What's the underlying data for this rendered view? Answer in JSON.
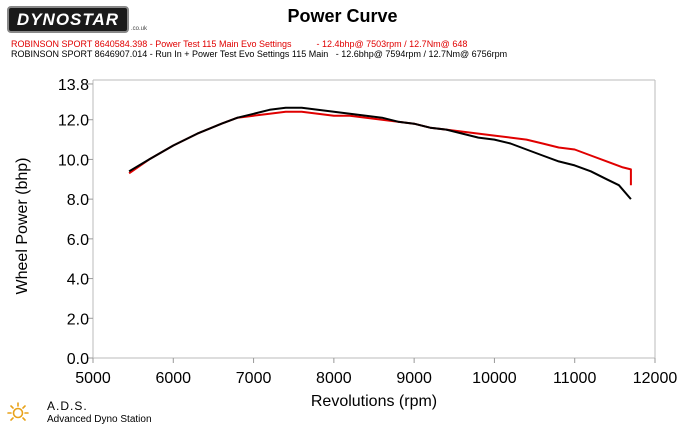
{
  "header": {
    "logo_text": "DYNOSTAR",
    "logo_sub": ".co.uk",
    "title": "Power Curve"
  },
  "legend": {
    "run1": "ROBINSON SPORT 8640584.398 - Power Test 115 Main Evo Settings          - 12.4bhp@ 7503rpm / 12.7Nm@ 648",
    "run2": "ROBINSON SPORT 8646907.014 - Run In + Power Test Evo Settings 115 Main   - 12.6bhp@ 7594rpm / 12.7Nm@ 6756rpm"
  },
  "footer": {
    "ads_title": "A.D.S.",
    "ads_subtitle": "Advanced Dyno Station"
  },
  "chart_data": {
    "type": "line",
    "xlabel": "Revolutions (rpm)",
    "ylabel": "Wheel Power (bhp)",
    "xlim": [
      5000,
      12000
    ],
    "ylim": [
      0,
      14
    ],
    "xticks": [
      5000,
      6000,
      7000,
      8000,
      9000,
      10000,
      11000,
      12000
    ],
    "yticks": [
      0.0,
      2.0,
      4.0,
      6.0,
      8.0,
      10.0,
      12.0,
      13.8
    ],
    "ytick_labels": [
      "0.0",
      "2.0",
      "4.0",
      "6.0",
      "8.0",
      "10.0",
      "12.0",
      "13.8"
    ],
    "grid": false,
    "series": [
      {
        "color": "#e00000",
        "x": [
          5450,
          5700,
          6000,
          6300,
          6600,
          6800,
          7000,
          7200,
          7400,
          7500,
          7600,
          7800,
          8000,
          8200,
          8400,
          8600,
          8800,
          9000,
          9200,
          9400,
          9600,
          9800,
          10000,
          10200,
          10400,
          10600,
          10800,
          11000,
          11200,
          11400,
          11600,
          11700,
          11700
        ],
        "y": [
          9.3,
          10.0,
          10.7,
          11.3,
          11.8,
          12.1,
          12.2,
          12.3,
          12.4,
          12.4,
          12.4,
          12.3,
          12.2,
          12.2,
          12.1,
          12.0,
          11.9,
          11.8,
          11.6,
          11.5,
          11.4,
          11.3,
          11.2,
          11.1,
          11.0,
          10.8,
          10.6,
          10.5,
          10.2,
          9.9,
          9.6,
          9.5,
          8.7
        ]
      },
      {
        "color": "#000000",
        "x": [
          5450,
          5700,
          6000,
          6300,
          6600,
          6800,
          7000,
          7200,
          7400,
          7600,
          7800,
          8000,
          8200,
          8400,
          8600,
          8800,
          9000,
          9200,
          9400,
          9600,
          9800,
          10000,
          10200,
          10400,
          10600,
          10800,
          11000,
          11200,
          11400,
          11550,
          11700
        ],
        "y": [
          9.4,
          10.0,
          10.7,
          11.3,
          11.8,
          12.1,
          12.3,
          12.5,
          12.6,
          12.6,
          12.5,
          12.4,
          12.3,
          12.2,
          12.1,
          11.9,
          11.8,
          11.6,
          11.5,
          11.3,
          11.1,
          11.0,
          10.8,
          10.5,
          10.2,
          9.9,
          9.7,
          9.4,
          9.0,
          8.7,
          8.0
        ]
      }
    ]
  }
}
